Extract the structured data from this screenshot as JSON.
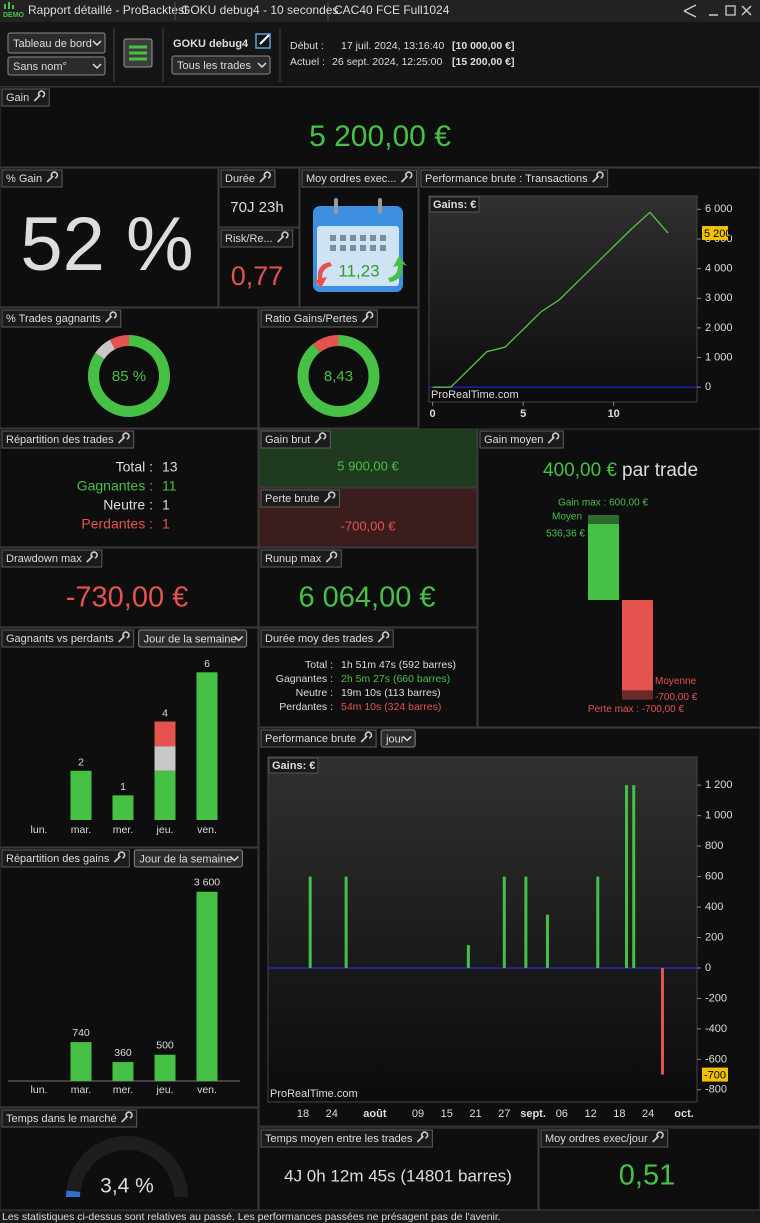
{
  "window": {
    "logo": "DEMO",
    "title": "Rapport détaillé - ProBacktest",
    "tabs": [
      "GOKU debug4 - 10 secondes",
      "CAC40 FCE Full1024"
    ]
  },
  "toolbar": {
    "view": "Tableau de bord",
    "layout": "Sans nom°",
    "system": "GOKU debug4",
    "filter": "Tous les trades",
    "start_label": "Début :",
    "start_date": "17 juil. 2024, 13:16:40",
    "start_capital": "[10 000,00 €]",
    "current_label": "Actuel :",
    "current_date": "26 sept. 2024, 12:25:00",
    "current_capital": "[15 200,00 €]"
  },
  "panels": {
    "gain": {
      "title": "Gain",
      "value": "5 200,00 €"
    },
    "pct_gain": {
      "title": "% Gain",
      "value": "52 %"
    },
    "duration": {
      "title": "Durée",
      "value": "70J 23h"
    },
    "risk": {
      "title": "Risk/Re...",
      "value": "0,77"
    },
    "orders": {
      "title": "Moy ordres exec...",
      "value": "11,23"
    },
    "trades": {
      "title": "Répartition des trades",
      "rows": [
        {
          "label": "Total :",
          "value": "13"
        },
        {
          "label": "Gagnantes :",
          "value": "11"
        },
        {
          "label": "Neutre :",
          "value": "1"
        },
        {
          "label": "Perdantes :",
          "value": "1"
        }
      ]
    },
    "gross_gain": {
      "title": "Gain brut",
      "value": "5 900,00 €"
    },
    "gross_loss": {
      "title": "Perte brute",
      "value": "-700,00 €"
    },
    "drawdown": {
      "title": "Drawdown max",
      "value": "-730,00 €"
    },
    "runup": {
      "title": "Runup max",
      "value": "6 064,00 €"
    },
    "avg_duration": {
      "title": "Durée moy des trades",
      "rows": [
        {
          "label": "Total :",
          "value": "1h 51m 47s (592 barres)"
        },
        {
          "label": "Gagnantes :",
          "value": "2h 5m 27s (660 barres)"
        },
        {
          "label": "Neutre :",
          "value": "19m 10s (113 barres)"
        },
        {
          "label": "Perdantes :",
          "value": "54m 10s (324 barres)"
        }
      ]
    },
    "avg_between": {
      "title": "Temps moyen entre les trades",
      "value": "4J 0h 12m 45s (14801 barres)"
    },
    "orders_day": {
      "title": "Moy ordres exec/jour",
      "value": "0,51"
    }
  },
  "chart_data": [
    {
      "type": "line",
      "title": "Performance brute : Transactions",
      "axis_label": "Gains: €",
      "x": [
        0,
        1,
        2,
        3,
        4,
        5,
        6,
        7,
        8,
        9,
        10,
        11,
        12,
        13
      ],
      "values": [
        0,
        0,
        600,
        1200,
        1350,
        1950,
        2550,
        2950,
        3550,
        4150,
        4750,
        5350,
        5900,
        5200
      ],
      "color": "#5cbf4a",
      "xlim": [
        -0.2,
        14.6
      ],
      "ylim": [
        -500,
        6450
      ],
      "xticks": [
        0,
        5,
        10
      ],
      "yticks": [
        0,
        {
          "value": 1000,
          "label": "1 000"
        },
        {
          "value": 2000,
          "label": "2 000"
        },
        {
          "value": 3000,
          "label": "3 000"
        },
        {
          "value": 4000,
          "label": "4 000"
        },
        {
          "value": 5000,
          "label": "5 000"
        },
        {
          "value": 6000,
          "label": "6 000"
        }
      ],
      "last_value": {
        "value": 5200,
        "label": "5 200"
      },
      "watermark": "ProRealTime.com"
    },
    {
      "type": "donut",
      "title": "% Trades gagnants",
      "center_label": "85 %",
      "values": [
        11,
        1,
        1
      ],
      "colors": [
        "#46c146",
        "#c8c8c8",
        "#e5534f"
      ]
    },
    {
      "type": "donut",
      "title": "Ratio Gains/Pertes",
      "center_label": "8,43",
      "values": [
        5900,
        700
      ],
      "colors": [
        "#46c146",
        "#e5534f"
      ]
    },
    {
      "type": "range",
      "title": "Gain moyen",
      "headline": "400,00 €",
      "headline_suffix": "par trade",
      "gain_max": 600,
      "gain_max_label": "Gain max : 600,00 €",
      "gain_avg": 536.36,
      "gain_avg_name": "Moyen",
      "gain_avg_label": "536,36 €",
      "loss_avg": -700,
      "loss_avg_name": "Moyenne",
      "loss_avg_label": "-700,00 €",
      "loss_max": -700,
      "loss_max_label": "Perte max : -700,00 €",
      "ylim": [
        -740,
        670
      ]
    },
    {
      "type": "stacked-bar",
      "title": "Gagnants vs perdants",
      "selector": "Jour de la semaine",
      "categories": [
        "lun.",
        "mar.",
        "mer.",
        "jeu.",
        "ven."
      ],
      "series": [
        {
          "color": "#46c146",
          "values": [
            0,
            2,
            1,
            2,
            6
          ]
        },
        {
          "color": "#c8c8c8",
          "values": [
            0,
            0,
            0,
            1,
            0
          ]
        },
        {
          "color": "#e5534f",
          "values": [
            0,
            0,
            0,
            1,
            0
          ]
        }
      ],
      "totals": [
        null,
        2,
        1,
        4,
        6
      ],
      "ylim": [
        0,
        6.5
      ]
    },
    {
      "type": "bar",
      "title": "Répartition des gains",
      "selector": "Jour de la semaine",
      "categories": [
        "lun.",
        "mar.",
        "mer.",
        "jeu.",
        "ven."
      ],
      "values": [
        0,
        740,
        360,
        500,
        3600
      ],
      "value_labels": [
        null,
        "740",
        "360",
        "500",
        "3 600"
      ],
      "color": "#46c146",
      "ylim": [
        0,
        3900
      ]
    },
    {
      "type": "gauge",
      "title": "Temps dans le marché",
      "value": 3.4,
      "label": "3,4 %",
      "ylim": [
        0,
        100
      ],
      "color": "#2f6fd0"
    },
    {
      "type": "daily-bar",
      "title": "Performance brute",
      "selector": "jour",
      "axis_label": "Gains: €",
      "categories": [
        null,
        "18",
        null,
        null,
        null,
        "24",
        null,
        null,
        null,
        null,
        null,
        "août",
        null,
        null,
        null,
        null,
        null,
        "09",
        null,
        null,
        null,
        "15",
        null,
        null,
        null,
        "21",
        null,
        null,
        null,
        "27",
        null,
        null,
        null,
        "sept.",
        null,
        null,
        null,
        "06",
        null,
        null,
        null,
        "12",
        null,
        null,
        null,
        "18",
        null,
        null,
        null,
        "24",
        null,
        null,
        null,
        null,
        "oct."
      ],
      "values": [
        null,
        null,
        600,
        null,
        null,
        null,
        null,
        600,
        null,
        null,
        null,
        null,
        null,
        null,
        null,
        null,
        null,
        null,
        null,
        null,
        null,
        null,
        null,
        null,
        150,
        null,
        null,
        null,
        null,
        600,
        null,
        null,
        600,
        null,
        null,
        350,
        null,
        null,
        null,
        null,
        null,
        null,
        600,
        null,
        null,
        null,
        1200,
        1200,
        null,
        null,
        null,
        -700,
        null,
        null,
        null
      ],
      "color": "#46c146",
      "negative_color": "#e5534f",
      "ylim": [
        -880,
        1385
      ],
      "yticks": [
        {
          "value": 1200,
          "label": "1 200"
        },
        {
          "value": 1000,
          "label": "1 000"
        },
        800,
        600,
        400,
        200,
        0,
        -200,
        -400,
        -600,
        -800
      ],
      "last_value": -700,
      "watermark": "ProRealTime.com"
    }
  ],
  "footer": "Les statistiques ci-dessus sont relatives au passé. Les performances passées ne présagent pas de l'avenir."
}
